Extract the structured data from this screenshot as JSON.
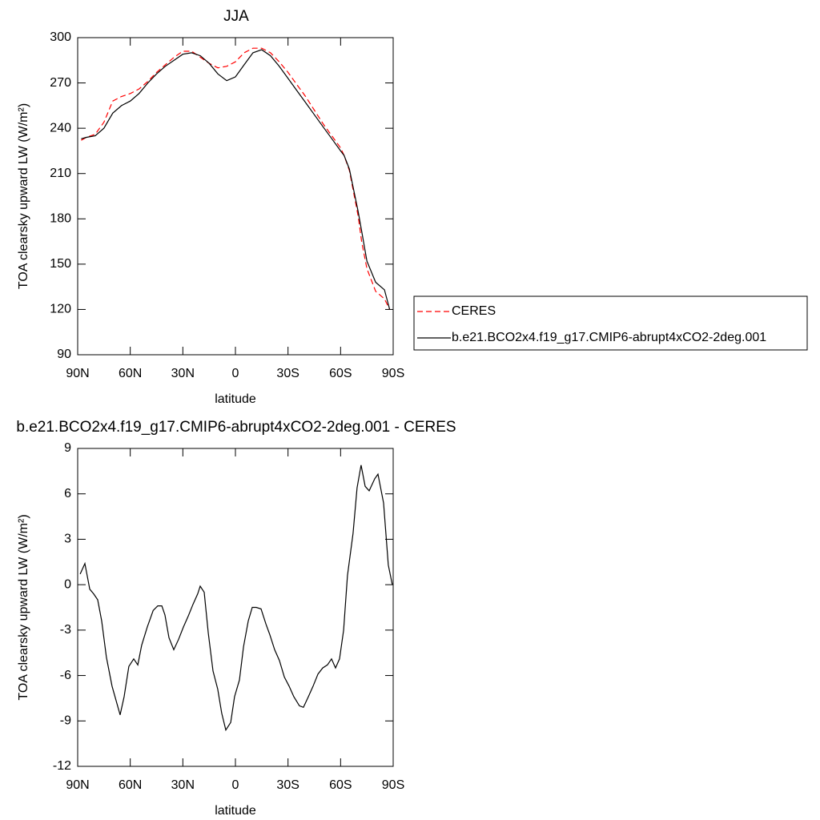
{
  "chart_data": [
    {
      "type": "line",
      "title": "JJA",
      "xlabel": "latitude",
      "ylabel": "TOA clearsky upward LW (W/m²)",
      "x": [
        88,
        85,
        80,
        75,
        70,
        65,
        60,
        55,
        50,
        45,
        40,
        35,
        30,
        25,
        20,
        15,
        10,
        5,
        0,
        -5,
        -10,
        -15,
        -20,
        -25,
        -30,
        -35,
        -40,
        -45,
        -50,
        -55,
        -60,
        -62,
        -65,
        -70,
        -72,
        -75,
        -80,
        -85,
        -88
      ],
      "series": [
        {
          "name": "CERES",
          "color": "#ff0000",
          "line_style": "dashed",
          "values": [
            232,
            234,
            236,
            244,
            258,
            261,
            263,
            266,
            271,
            277,
            282,
            287,
            291,
            291,
            287,
            283,
            280,
            281,
            284,
            290,
            293,
            293,
            290,
            284,
            277,
            269,
            261,
            252,
            243,
            235,
            227,
            222,
            212,
            182,
            165,
            147,
            132,
            127,
            120
          ]
        },
        {
          "name": "b.e21.BCO2x4.f19_g17.CMIP6-abrupt4xCO2-2deg.001",
          "color": "#000000",
          "line_style": "solid",
          "values": [
            233,
            234,
            235,
            240,
            250,
            255,
            258,
            263,
            270,
            276,
            281,
            285,
            289,
            290,
            288,
            283,
            276,
            271.5,
            274,
            282,
            290,
            292,
            288,
            281,
            273,
            265,
            257,
            249,
            241,
            233,
            225,
            222,
            213,
            185,
            172,
            152,
            138,
            133,
            120
          ]
        }
      ],
      "xlim": [
        90,
        -90
      ],
      "xticks": [
        {
          "value": 90,
          "label": "90N"
        },
        {
          "value": 60,
          "label": "60N"
        },
        {
          "value": 30,
          "label": "30N"
        },
        0,
        {
          "value": -30,
          "label": "30S"
        },
        {
          "value": -60,
          "label": "60S"
        },
        {
          "value": -90,
          "label": "90S"
        }
      ],
      "ylim": [
        90,
        300
      ],
      "yticks": [
        90,
        120,
        150,
        180,
        210,
        240,
        270,
        300
      ],
      "legend": "right"
    },
    {
      "type": "line",
      "title": "b.e21.BCO2x4.f19_g17.CMIP6-abrupt4xCO2-2deg.001 - CERES",
      "xlabel": "latitude",
      "ylabel": "TOA clearsky upward LW (W/m²)",
      "x": [
        88.6,
        85.9,
        83.1,
        80.9,
        78.6,
        76.3,
        73.6,
        70.4,
        65.8,
        63.5,
        60.8,
        58.0,
        55.7,
        53.5,
        50.3,
        46.9,
        44.3,
        42.0,
        40.2,
        37.9,
        35.2,
        32.4,
        29.7,
        27.0,
        24.2,
        21.5,
        20.1,
        17.8,
        15.5,
        12.8,
        10.1,
        7.8,
        5.5,
        2.7,
        0.5,
        -2.3,
        -4.6,
        -7.3,
        -9.6,
        -11.9,
        -14.6,
        -17.4,
        -19.6,
        -22.4,
        -25.1,
        -27.9,
        -30.6,
        -33.3,
        -36.5,
        -38.8,
        -41.6,
        -44.3,
        -47.1,
        -49.8,
        -52.5,
        -54.8,
        -57.1,
        -59.4,
        -61.7,
        -63.9,
        -67.1,
        -69.4,
        -71.7,
        -74.0,
        -76.3,
        -79.5,
        -81.3,
        -84.5,
        -87.2,
        -89.5
      ],
      "series": [
        {
          "color": "#000000",
          "line_style": "solid",
          "values": [
            0.7,
            1.4,
            -0.3,
            -0.6,
            -1.0,
            -2.4,
            -4.8,
            -6.7,
            -8.6,
            -7.4,
            -5.4,
            -4.9,
            -5.3,
            -4.0,
            -2.8,
            -1.7,
            -1.4,
            -1.4,
            -2.0,
            -3.5,
            -4.3,
            -3.6,
            -2.8,
            -2.1,
            -1.3,
            -0.6,
            -0.1,
            -0.5,
            -3.2,
            -5.7,
            -6.9,
            -8.5,
            -9.6,
            -9.1,
            -7.4,
            -6.3,
            -4.1,
            -2.4,
            -1.5,
            -1.5,
            -1.6,
            -2.6,
            -3.3,
            -4.3,
            -5.0,
            -6.1,
            -6.7,
            -7.4,
            -8.0,
            -8.1,
            -7.4,
            -6.7,
            -5.9,
            -5.5,
            -5.3,
            -4.9,
            -5.5,
            -4.9,
            -3.0,
            0.6,
            3.4,
            6.4,
            7.9,
            6.5,
            6.2,
            7.0,
            7.3,
            5.4,
            1.3,
            0.0
          ]
        }
      ],
      "xlim": [
        90,
        -90
      ],
      "xticks": [
        {
          "value": 90,
          "label": "90N"
        },
        {
          "value": 60,
          "label": "60N"
        },
        {
          "value": 30,
          "label": "30N"
        },
        0,
        {
          "value": -30,
          "label": "30S"
        },
        {
          "value": -60,
          "label": "60S"
        },
        {
          "value": -90,
          "label": "90S"
        }
      ],
      "ylim": [
        -12,
        9
      ],
      "yticks": [
        -12,
        -9,
        -6,
        -3,
        0,
        3,
        6,
        9
      ]
    }
  ]
}
